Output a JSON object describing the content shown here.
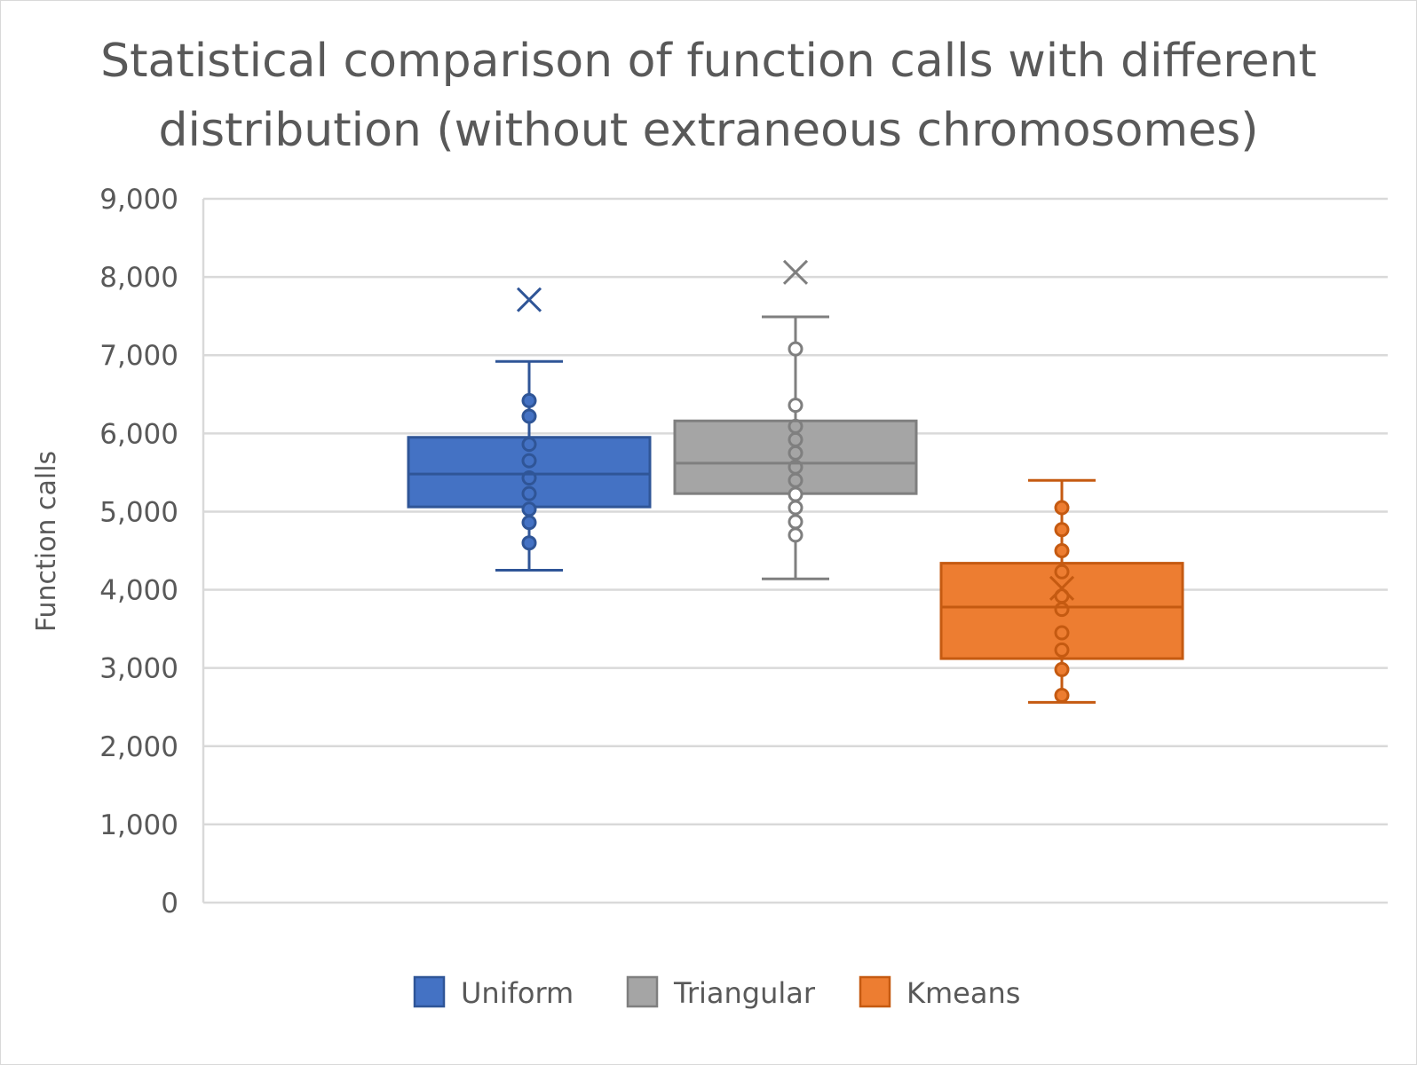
{
  "chart_data": {
    "type": "box",
    "title": "Statistical comparison of function calls with different distribution (without extraneous chromosomes)",
    "ylabel": "Function calls",
    "xlabel": "",
    "ylim": [
      0,
      9000
    ],
    "yticks": [
      "0",
      "1,000",
      "2,000",
      "3,000",
      "4,000",
      "5,000",
      "6,000",
      "7,000",
      "8,000",
      "9,000"
    ],
    "ytick_values": [
      0,
      1000,
      2000,
      3000,
      4000,
      5000,
      6000,
      7000,
      8000,
      9000
    ],
    "grid": true,
    "legend_position": "bottom",
    "series": [
      {
        "name": "Uniform",
        "color": "#4472c4",
        "stroke": "#2f5597",
        "whisker_low": 4250,
        "q1": 5060,
        "median": 5480,
        "q3": 5950,
        "whisker_high": 6920,
        "mean": 7710,
        "points": [
          4600,
          4860,
          5030,
          5230,
          5430,
          5650,
          5860,
          6220,
          6420
        ],
        "filled_points": true
      },
      {
        "name": "Triangular",
        "color": "#a5a5a5",
        "stroke": "#7f7f7f",
        "whisker_low": 4140,
        "q1": 5230,
        "median": 5620,
        "q3": 6160,
        "whisker_high": 7490,
        "mean": 8060,
        "points": [
          4700,
          4870,
          5050,
          5220,
          5400,
          5570,
          5750,
          5920,
          6090,
          6360,
          7080
        ],
        "filled_points": false
      },
      {
        "name": "Kmeans",
        "color": "#ed7d31",
        "stroke": "#c55a11",
        "whisker_low": 2560,
        "q1": 3120,
        "median": 3780,
        "q3": 4340,
        "whisker_high": 5400,
        "mean": 4020,
        "points": [
          2650,
          2980,
          3230,
          3450,
          3750,
          3920,
          4230,
          4500,
          4770,
          5050
        ],
        "filled_points": true
      }
    ]
  }
}
